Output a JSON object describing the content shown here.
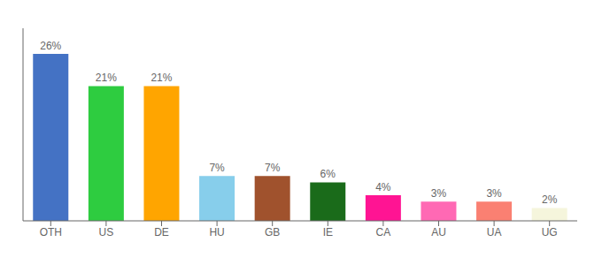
{
  "chart_data": {
    "type": "bar",
    "categories": [
      "OTH",
      "US",
      "DE",
      "HU",
      "GB",
      "IE",
      "CA",
      "AU",
      "UA",
      "UG"
    ],
    "values": [
      26,
      21,
      21,
      7,
      7,
      6,
      4,
      3,
      3,
      2
    ],
    "value_labels": [
      "26%",
      "21%",
      "21%",
      "7%",
      "7%",
      "6%",
      "4%",
      "3%",
      "3%",
      "2%"
    ],
    "colors": [
      "#4472C4",
      "#2ECC40",
      "#FFA500",
      "#87CEEB",
      "#A0522D",
      "#1A6B1A",
      "#FF1493",
      "#FF69B4",
      "#FA8072",
      "#F5F5DC"
    ],
    "ylim": [
      0,
      30
    ],
    "grid": false,
    "data_labels": true,
    "tick_labels": "x"
  }
}
